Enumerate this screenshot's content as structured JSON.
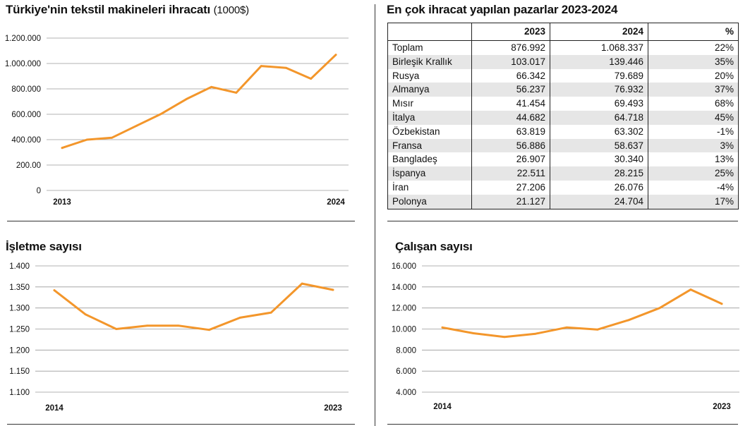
{
  "color_line": "#f3962b",
  "exports": {
    "title": "Türkiye'nin tekstil makineleri ihracatı",
    "unit": "(1000$)"
  },
  "markets": {
    "title": "En çok ihracat yapılan pazarlar 2023-2024",
    "headers": [
      "",
      "2023",
      "2024",
      "%"
    ],
    "rows": [
      [
        "Toplam",
        "876.992",
        "1.068.337",
        "22%"
      ],
      [
        "Birleşik Krallık",
        "103.017",
        "139.446",
        "35%"
      ],
      [
        "Rusya",
        "66.342",
        "79.689",
        "20%"
      ],
      [
        "Almanya",
        "56.237",
        "76.932",
        "37%"
      ],
      [
        "Mısır",
        "41.454",
        "69.493",
        "68%"
      ],
      [
        "İtalya",
        "44.682",
        "64.718",
        "45%"
      ],
      [
        "Özbekistan",
        "63.819",
        "63.302",
        "-1%"
      ],
      [
        "Fransa",
        "56.886",
        "58.637",
        "3%"
      ],
      [
        "Bangladeş",
        "26.907",
        "30.340",
        "13%"
      ],
      [
        "İspanya",
        "22.511",
        "28.215",
        "25%"
      ],
      [
        "İran",
        "27.206",
        "26.076",
        "-4%"
      ],
      [
        "Polonya",
        "21.127",
        "24.704",
        "17%"
      ]
    ]
  },
  "firms": {
    "title": "İşletme sayısı"
  },
  "employees": {
    "title": "Çalışan sayısı"
  },
  "chart_data": [
    {
      "type": "line",
      "title": "Türkiye'nin tekstil makineleri ihracatı (1000$)",
      "x": [
        "2013",
        "2014",
        "2015",
        "2016",
        "2017",
        "2018",
        "2019",
        "2020",
        "2021",
        "2022",
        "2023",
        "2024"
      ],
      "x_tick_labels": [
        "2013",
        "2024"
      ],
      "y_tick_labels": [
        "0",
        "200.00",
        "400.000",
        "600.000",
        "800.000",
        "1.000.000",
        "1.200.000"
      ],
      "ylim": [
        0,
        1200000
      ],
      "series": [
        {
          "values": [
            335000,
            400000,
            415000,
            510000,
            605000,
            720000,
            815000,
            770000,
            980000,
            965000,
            880000,
            1068337
          ]
        }
      ]
    },
    {
      "type": "line",
      "title": "İşletme sayısı",
      "x": [
        "2014",
        "2015",
        "2016",
        "2017",
        "2018",
        "2019",
        "2020",
        "2021",
        "2022",
        "2023"
      ],
      "x_tick_labels": [
        "2014",
        "2023"
      ],
      "y_tick_labels": [
        "1.100",
        "1.150",
        "1.200",
        "1.250",
        "1.300",
        "1.350",
        "1.400"
      ],
      "ylim": [
        1100,
        1400
      ],
      "series": [
        {
          "values": [
            1342,
            1285,
            1250,
            1258,
            1258,
            1248,
            1277,
            1289,
            1358,
            1343
          ]
        }
      ]
    },
    {
      "type": "line",
      "title": "Çalışan sayısı",
      "x": [
        "2014",
        "2015",
        "2016",
        "2017",
        "2018",
        "2019",
        "2020",
        "2021",
        "2022",
        "2023"
      ],
      "x_tick_labels": [
        "2014",
        "2023"
      ],
      "y_tick_labels": [
        "4.000",
        "6.000",
        "8.000",
        "10.000",
        "12.000",
        "14.000",
        "16.000"
      ],
      "ylim": [
        4000,
        16000
      ],
      "series": [
        {
          "values": [
            10150,
            9600,
            9250,
            9550,
            10150,
            9950,
            10850,
            12000,
            13750,
            12400
          ]
        }
      ]
    }
  ]
}
